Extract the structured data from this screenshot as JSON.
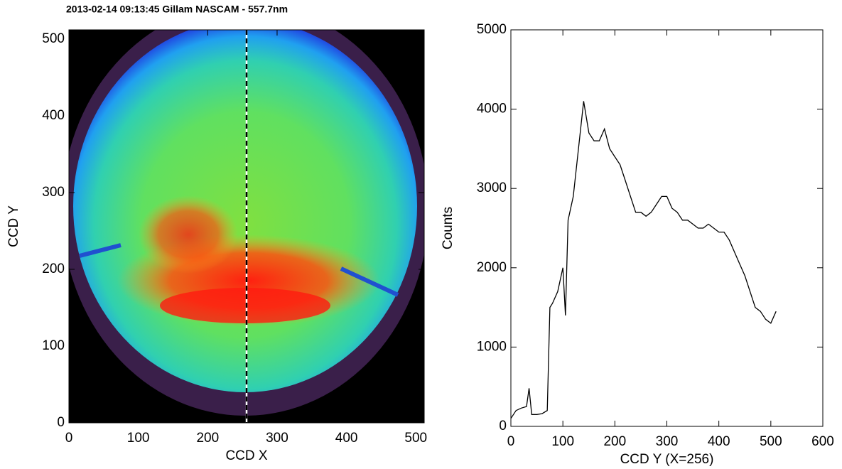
{
  "chart_data": [
    {
      "type": "image",
      "title": "2013-02-14 09:13:45 Gillam NASCAM - 557.7nm",
      "xlabel": "CCD X",
      "ylabel": "CCD Y",
      "xlim": [
        0,
        512
      ],
      "ylim": [
        0,
        512
      ],
      "xticks": [
        0,
        100,
        200,
        300,
        400,
        500
      ],
      "yticks": [
        0,
        100,
        200,
        300,
        400,
        500
      ],
      "cut_x": 256
    },
    {
      "type": "line",
      "xlabel": "CCD Y (X=256)",
      "ylabel": "Counts",
      "xlim": [
        0,
        600
      ],
      "ylim": [
        0,
        5000
      ],
      "xticks": [
        0,
        100,
        200,
        300,
        400,
        500,
        600
      ],
      "yticks": [
        0,
        1000,
        2000,
        3000,
        4000,
        5000
      ],
      "color": "#000000",
      "x": [
        0,
        10,
        20,
        30,
        35,
        40,
        50,
        60,
        70,
        75,
        80,
        90,
        100,
        105,
        110,
        120,
        130,
        140,
        150,
        160,
        170,
        180,
        190,
        200,
        210,
        220,
        230,
        240,
        250,
        260,
        270,
        280,
        290,
        300,
        310,
        320,
        330,
        340,
        350,
        360,
        370,
        380,
        390,
        400,
        410,
        420,
        430,
        440,
        450,
        460,
        470,
        480,
        490,
        500,
        510
      ],
      "values": [
        100,
        200,
        230,
        250,
        480,
        150,
        150,
        160,
        200,
        1500,
        1550,
        1700,
        2000,
        1400,
        2600,
        2900,
        3500,
        4100,
        3700,
        3600,
        3600,
        3750,
        3500,
        3400,
        3300,
        3100,
        2900,
        2700,
        2700,
        2650,
        2700,
        2800,
        2900,
        2900,
        2750,
        2700,
        2600,
        2600,
        2550,
        2500,
        2500,
        2550,
        2500,
        2450,
        2450,
        2350,
        2200,
        2050,
        1900,
        1700,
        1500,
        1450,
        1350,
        1300,
        1450
      ]
    }
  ]
}
